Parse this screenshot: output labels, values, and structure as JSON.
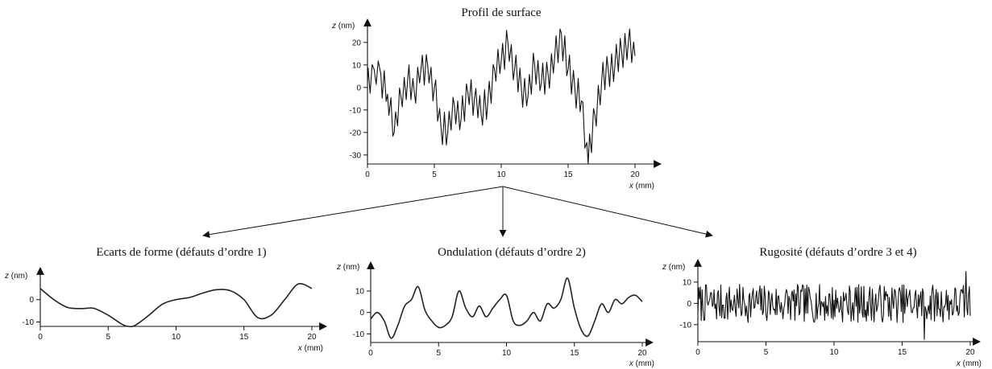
{
  "chart_data": [
    {
      "id": "profil",
      "type": "line",
      "title": "Profil de surface",
      "xlabel_var": "x",
      "xlabel_unit": " (mm)",
      "ylabel_var": "z",
      "ylabel_unit": " (nm)",
      "xlim": [
        0,
        20
      ],
      "ylim": [
        -34,
        26
      ],
      "xticks": [
        0,
        5,
        10,
        15,
        20
      ],
      "yticks": [
        -30,
        -20,
        -10,
        0,
        10,
        20
      ],
      "x": [
        0,
        0.5,
        1,
        1.5,
        2,
        2.5,
        3,
        3.5,
        4,
        4.5,
        5,
        5.5,
        6,
        6.5,
        7,
        7.5,
        8,
        8.5,
        9,
        9.5,
        10,
        10.5,
        11,
        11.5,
        12,
        12.5,
        13,
        13.5,
        14,
        14.5,
        15,
        15.5,
        16,
        16.5,
        17,
        17.5,
        18,
        18.5,
        19,
        19.5,
        20
      ],
      "y": [
        2,
        8,
        6,
        -3,
        -20,
        -4,
        3,
        -2,
        8,
        10,
        0,
        -18,
        -20,
        -8,
        -14,
        -2,
        -5,
        -12,
        -6,
        8,
        12,
        20,
        8,
        0,
        -4,
        10,
        2,
        6,
        14,
        24,
        8,
        0,
        -6,
        -34,
        -12,
        2,
        8,
        10,
        16,
        20,
        14
      ],
      "noise": [
        {
          "x": 0.05,
          "dy": 6
        },
        {
          "x": 0.2,
          "dy": -7
        },
        {
          "x": 0.35,
          "dy": 4
        },
        {
          "x": 0.65,
          "dy": -6
        },
        {
          "x": 0.8,
          "dy": 5
        },
        {
          "x": 1.1,
          "dy": -9
        },
        {
          "x": 1.25,
          "dy": 6
        },
        {
          "x": 1.4,
          "dy": -5
        },
        {
          "x": 1.6,
          "dy": -6
        },
        {
          "x": 1.75,
          "dy": 7
        },
        {
          "x": 1.9,
          "dy": -5
        },
        {
          "x": 2.1,
          "dy": 6
        },
        {
          "x": 2.25,
          "dy": -5
        },
        {
          "x": 2.4,
          "dy": 7
        },
        {
          "x": 2.6,
          "dy": -6
        },
        {
          "x": 2.75,
          "dy": 5
        },
        {
          "x": 2.9,
          "dy": -7
        },
        {
          "x": 3.1,
          "dy": 8
        },
        {
          "x": 3.25,
          "dy": -6
        },
        {
          "x": 3.4,
          "dy": 5
        },
        {
          "x": 3.6,
          "dy": -7
        },
        {
          "x": 3.75,
          "dy": 6
        },
        {
          "x": 3.9,
          "dy": -4
        },
        {
          "x": 4.1,
          "dy": 6
        },
        {
          "x": 4.25,
          "dy": -8
        },
        {
          "x": 4.4,
          "dy": 5
        },
        {
          "x": 4.6,
          "dy": -6
        },
        {
          "x": 4.75,
          "dy": 4
        },
        {
          "x": 4.9,
          "dy": -8
        },
        {
          "x": 5.1,
          "dy": 7
        },
        {
          "x": 5.25,
          "dy": -6
        },
        {
          "x": 5.4,
          "dy": 5
        },
        {
          "x": 5.6,
          "dy": -7
        },
        {
          "x": 5.75,
          "dy": 8
        },
        {
          "x": 5.9,
          "dy": -6
        },
        {
          "x": 6.1,
          "dy": 7
        },
        {
          "x": 6.25,
          "dy": -5
        },
        {
          "x": 6.4,
          "dy": 6
        },
        {
          "x": 6.6,
          "dy": -7
        },
        {
          "x": 6.75,
          "dy": 5
        },
        {
          "x": 6.9,
          "dy": -6
        },
        {
          "x": 7.1,
          "dy": 8
        },
        {
          "x": 7.25,
          "dy": -7
        },
        {
          "x": 7.4,
          "dy": 6
        },
        {
          "x": 7.6,
          "dy": -5
        },
        {
          "x": 7.75,
          "dy": 7
        },
        {
          "x": 7.9,
          "dy": -8
        },
        {
          "x": 8.1,
          "dy": 6
        },
        {
          "x": 8.25,
          "dy": -5
        },
        {
          "x": 8.4,
          "dy": 7
        },
        {
          "x": 8.6,
          "dy": -6
        },
        {
          "x": 8.75,
          "dy": 8
        },
        {
          "x": 8.9,
          "dy": -7
        },
        {
          "x": 9.1,
          "dy": 6
        },
        {
          "x": 9.25,
          "dy": -8
        },
        {
          "x": 9.4,
          "dy": 5
        },
        {
          "x": 9.6,
          "dy": -6
        },
        {
          "x": 9.75,
          "dy": 7
        },
        {
          "x": 9.9,
          "dy": -5
        },
        {
          "x": 10.1,
          "dy": 6
        },
        {
          "x": 10.25,
          "dy": -8
        },
        {
          "x": 10.4,
          "dy": 7
        },
        {
          "x": 10.6,
          "dy": -6
        },
        {
          "x": 10.75,
          "dy": 5
        },
        {
          "x": 10.9,
          "dy": -7
        },
        {
          "x": 11.1,
          "dy": 8
        },
        {
          "x": 11.25,
          "dy": -6
        },
        {
          "x": 11.4,
          "dy": 7
        },
        {
          "x": 11.6,
          "dy": -8
        },
        {
          "x": 11.75,
          "dy": 6
        },
        {
          "x": 11.9,
          "dy": -5
        },
        {
          "x": 12.1,
          "dy": 7
        },
        {
          "x": 12.25,
          "dy": -6
        },
        {
          "x": 12.4,
          "dy": 8
        },
        {
          "x": 12.6,
          "dy": -7
        },
        {
          "x": 12.75,
          "dy": 6
        },
        {
          "x": 12.9,
          "dy": -5
        },
        {
          "x": 13.1,
          "dy": 8
        },
        {
          "x": 13.25,
          "dy": -7
        },
        {
          "x": 13.4,
          "dy": 6
        },
        {
          "x": 13.6,
          "dy": -8
        },
        {
          "x": 13.75,
          "dy": 5
        },
        {
          "x": 13.9,
          "dy": -6
        },
        {
          "x": 14.1,
          "dy": 7
        },
        {
          "x": 14.25,
          "dy": -8
        },
        {
          "x": 14.4,
          "dy": 6
        },
        {
          "x": 14.6,
          "dy": -9
        },
        {
          "x": 14.75,
          "dy": 7
        },
        {
          "x": 14.9,
          "dy": -6
        },
        {
          "x": 15.1,
          "dy": 8
        },
        {
          "x": 15.25,
          "dy": -7
        },
        {
          "x": 15.4,
          "dy": 6
        },
        {
          "x": 15.6,
          "dy": -8
        },
        {
          "x": 15.75,
          "dy": 7
        },
        {
          "x": 15.9,
          "dy": -6
        },
        {
          "x": 16.1,
          "dy": 5
        },
        {
          "x": 16.25,
          "dy": -7
        },
        {
          "x": 16.4,
          "dy": 4
        },
        {
          "x": 16.6,
          "dy": 9
        },
        {
          "x": 16.75,
          "dy": -6
        },
        {
          "x": 16.9,
          "dy": 7
        },
        {
          "x": 17.1,
          "dy": -8
        },
        {
          "x": 17.25,
          "dy": 6
        },
        {
          "x": 17.4,
          "dy": -7
        },
        {
          "x": 17.6,
          "dy": 8
        },
        {
          "x": 17.75,
          "dy": -6
        },
        {
          "x": 17.9,
          "dy": 7
        },
        {
          "x": 18.1,
          "dy": -8
        },
        {
          "x": 18.25,
          "dy": 6
        },
        {
          "x": 18.4,
          "dy": -7
        },
        {
          "x": 18.6,
          "dy": 8
        },
        {
          "x": 18.75,
          "dy": -6
        },
        {
          "x": 18.9,
          "dy": 7
        },
        {
          "x": 19.1,
          "dy": -8
        },
        {
          "x": 19.25,
          "dy": 6
        },
        {
          "x": 19.4,
          "dy": -7
        },
        {
          "x": 19.6,
          "dy": 8
        },
        {
          "x": 19.75,
          "dy": -6
        },
        {
          "x": 19.9,
          "dy": 5
        }
      ]
    },
    {
      "id": "forme",
      "type": "line",
      "title": "Ecarts de forme (défauts d’ordre 1)",
      "xlabel_var": "x",
      "xlabel_unit": " (mm)",
      "ylabel_var": "z",
      "ylabel_unit": " (nm)",
      "xlim": [
        0,
        20
      ],
      "ylim": [
        -12,
        10
      ],
      "xticks": [
        0,
        5,
        10,
        15,
        20
      ],
      "yticks": [
        -10,
        0
      ],
      "x": [
        0,
        1,
        2,
        3,
        3.5,
        4,
        5,
        6,
        6.5,
        7,
        8,
        9,
        10,
        11,
        12,
        13,
        14,
        15,
        16,
        17,
        18,
        19,
        20
      ],
      "y": [
        5,
        0,
        -3.5,
        -4,
        -3.8,
        -4,
        -7,
        -11,
        -12,
        -11.5,
        -7,
        -2,
        0,
        1,
        3,
        4.5,
        4,
        0,
        -8,
        -7,
        0,
        7,
        5
      ]
    },
    {
      "id": "ondulation",
      "type": "line",
      "title": "Ondulation (défauts d’ordre 2)",
      "xlabel_var": "x",
      "xlabel_unit": " (mm)",
      "ylabel_var": "z",
      "ylabel_unit": " (nm)",
      "xlim": [
        0,
        20
      ],
      "ylim": [
        -14,
        19
      ],
      "xticks": [
        0,
        5,
        10,
        15,
        20
      ],
      "yticks": [
        -10,
        0,
        10
      ],
      "x": [
        0,
        0.5,
        1,
        1.5,
        2,
        2.5,
        3,
        3.5,
        4,
        4.5,
        5,
        5.5,
        6,
        6.5,
        7,
        7.5,
        8,
        8.5,
        9,
        9.5,
        10,
        10.5,
        11,
        11.5,
        12,
        12.5,
        13,
        13.5,
        14,
        14.5,
        15,
        15.5,
        16,
        16.5,
        17,
        17.5,
        18,
        18.5,
        19,
        19.5,
        20
      ],
      "y": [
        -3,
        0,
        -4,
        -12,
        -6,
        3,
        6,
        12,
        1,
        -4,
        -7,
        -6,
        -2,
        10,
        2,
        -2,
        3,
        -2,
        2,
        6,
        8,
        -4,
        -6,
        -4,
        0,
        -4,
        4,
        2,
        6,
        16,
        2,
        -8,
        -11,
        -4,
        4,
        0,
        6,
        4,
        7,
        8,
        5
      ]
    },
    {
      "id": "rugosite",
      "type": "line",
      "title": "Rugosité (défauts d’ordre 3 et 4)",
      "xlabel_var": "x",
      "xlabel_unit": " (mm)",
      "ylabel_var": "z",
      "ylabel_unit": " (nm)",
      "xlim": [
        0,
        20
      ],
      "ylim": [
        -18,
        16
      ],
      "xticks": [
        0,
        5,
        10,
        15,
        20
      ],
      "yticks": [
        -10,
        0,
        10
      ],
      "noise_amplitude": 10,
      "points": 320
    }
  ]
}
